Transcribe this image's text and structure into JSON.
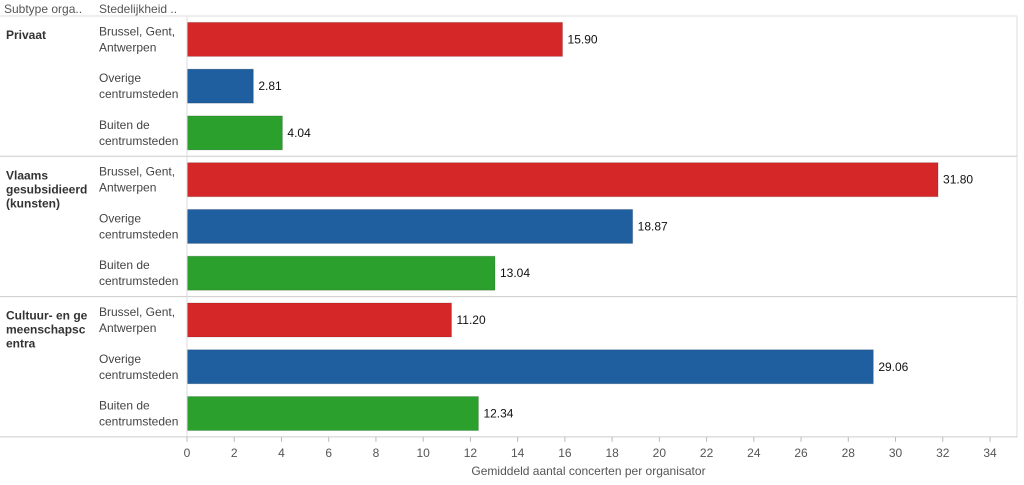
{
  "headers": {
    "col1": "Subtype orga..",
    "col2": "Stedelijkheid .."
  },
  "colors": {
    "Brussel, Gent, Antwerpen": "#d62728",
    "Overige centrumsteden": "#1f5fa0",
    "Buiten de centrumsteden": "#2ca02c"
  },
  "chart_data": {
    "type": "bar",
    "orientation": "horizontal",
    "xlabel": "Gemiddeld aantal concerten per organisator",
    "xlim": [
      0,
      34
    ],
    "xticks": [
      0,
      2,
      4,
      6,
      8,
      10,
      12,
      14,
      16,
      18,
      20,
      22,
      24,
      26,
      28,
      30,
      32,
      34
    ],
    "groups": [
      {
        "name": "Privaat",
        "label_lines": [
          "Privaat"
        ],
        "bars": [
          {
            "category": "Brussel, Gent, Antwerpen",
            "label_lines": [
              "Brussel, Gent,",
              "Antwerpen"
            ],
            "value": 15.9,
            "label": "15.90"
          },
          {
            "category": "Overige centrumsteden",
            "label_lines": [
              "Overige",
              "centrumsteden"
            ],
            "value": 2.81,
            "label": "2.81"
          },
          {
            "category": "Buiten de centrumsteden",
            "label_lines": [
              "Buiten de",
              "centrumsteden"
            ],
            "value": 4.04,
            "label": "4.04"
          }
        ]
      },
      {
        "name": "Vlaams gesubsidieerd (kunsten)",
        "label_lines": [
          "Vlaams",
          "gesubsidieerd",
          "(kunsten)"
        ],
        "bars": [
          {
            "category": "Brussel, Gent, Antwerpen",
            "label_lines": [
              "Brussel, Gent,",
              "Antwerpen"
            ],
            "value": 31.8,
            "label": "31.80"
          },
          {
            "category": "Overige centrumsteden",
            "label_lines": [
              "Overige",
              "centrumsteden"
            ],
            "value": 18.87,
            "label": "18.87"
          },
          {
            "category": "Buiten de centrumsteden",
            "label_lines": [
              "Buiten de",
              "centrumsteden"
            ],
            "value": 13.04,
            "label": "13.04"
          }
        ]
      },
      {
        "name": "Cultuur- en gemeenschapscentra",
        "label_lines": [
          "Cultuur- en ge",
          "meenschapsc",
          "entra"
        ],
        "bars": [
          {
            "category": "Brussel, Gent, Antwerpen",
            "label_lines": [
              "Brussel, Gent,",
              "Antwerpen"
            ],
            "value": 11.2,
            "label": "11.20"
          },
          {
            "category": "Overige centrumsteden",
            "label_lines": [
              "Overige",
              "centrumsteden"
            ],
            "value": 29.06,
            "label": "29.06"
          },
          {
            "category": "Buiten de centrumsteden",
            "label_lines": [
              "Buiten de",
              "centrumsteden"
            ],
            "value": 12.34,
            "label": "12.34"
          }
        ]
      }
    ]
  }
}
